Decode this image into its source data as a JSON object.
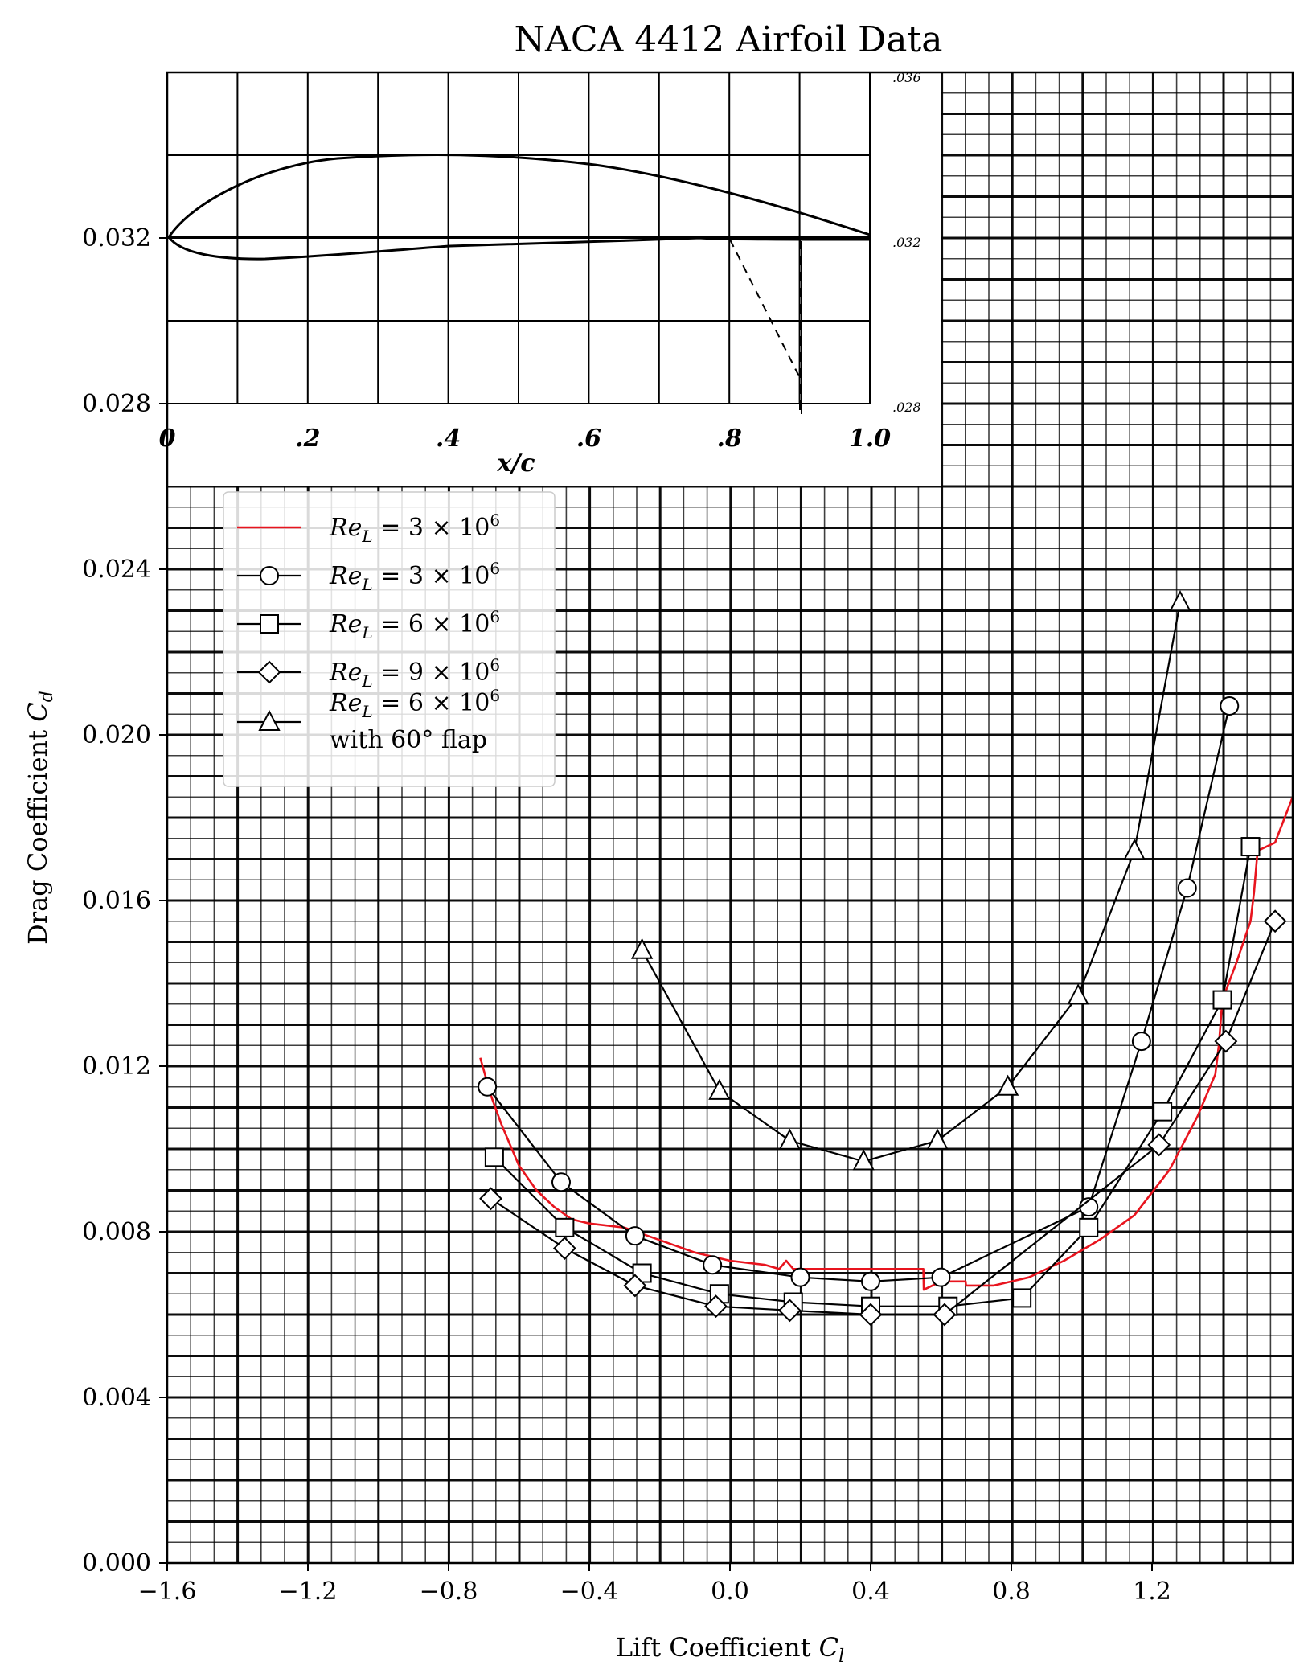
{
  "chart_data": {
    "type": "line",
    "title": "NACA 4412 Airfoil Data",
    "xlabel": "Lift Coefficient C_l",
    "ylabel": "Drag Coefficient C_d",
    "xlim": [
      -1.6,
      1.6
    ],
    "ylim": [
      0.0,
      0.036
    ],
    "x_ticks": [
      "−1.6",
      "−1.2",
      "−0.8",
      "−0.4",
      "0.0",
      "0.4",
      "0.8",
      "1.2"
    ],
    "x_tick_values": [
      -1.6,
      -1.2,
      -0.8,
      -0.4,
      0.0,
      0.4,
      0.8,
      1.2
    ],
    "y_ticks": [
      "0.000",
      "0.004",
      "0.008",
      "0.012",
      "0.016",
      "0.020",
      "0.024",
      "0.028",
      "0.032"
    ],
    "y_tick_values": [
      0.0,
      0.004,
      0.008,
      0.012,
      0.016,
      0.02,
      0.024,
      0.028,
      0.032
    ],
    "grid": true,
    "legend_position": "upper-left",
    "inset": {
      "x_ticks": [
        "0",
        ".2",
        ".4",
        ".6",
        ".8",
        "1.0"
      ],
      "x_label": "x/c",
      "right_ticks": [
        ".036",
        ".032",
        ".028"
      ]
    },
    "series": [
      {
        "name": "Re_L = 3 × 10^6",
        "legend_base": "Re",
        "legend_sub": "L",
        "legend_eq": " = 3 × 10",
        "legend_sup": "6",
        "legend_line2": "",
        "color": "#e8141e",
        "marker": "none",
        "x": [
          -0.71,
          -0.68,
          -0.65,
          -0.6,
          -0.55,
          -0.5,
          -0.45,
          -0.4,
          -0.3,
          -0.2,
          -0.1,
          0.0,
          0.1,
          0.14,
          0.16,
          0.18,
          0.22,
          0.3,
          0.4,
          0.5,
          0.55,
          0.551,
          0.6,
          0.67,
          0.671,
          0.75,
          0.85,
          0.95,
          1.05,
          1.15,
          1.25,
          1.33,
          1.38,
          1.39,
          1.4,
          1.44,
          1.48,
          1.49,
          1.5,
          1.55,
          1.6
        ],
        "y": [
          0.0122,
          0.0113,
          0.0106,
          0.0096,
          0.009,
          0.0086,
          0.0083,
          0.0082,
          0.0081,
          0.0078,
          0.0075,
          0.0073,
          0.0072,
          0.0071,
          0.0073,
          0.0071,
          0.0071,
          0.0071,
          0.0071,
          0.0071,
          0.0071,
          0.0066,
          0.0068,
          0.0068,
          0.0067,
          0.0067,
          0.0069,
          0.0073,
          0.0078,
          0.0084,
          0.0095,
          0.0108,
          0.0118,
          0.0125,
          0.0136,
          0.0145,
          0.0155,
          0.0162,
          0.0172,
          0.0174,
          0.0185
        ]
      },
      {
        "name": "Re_L = 3 × 10^6",
        "legend_base": "Re",
        "legend_sub": "L",
        "legend_eq": " = 3 × 10",
        "legend_sup": "6",
        "legend_line2": "",
        "color": "#000000",
        "marker": "circle",
        "x": [
          -0.69,
          -0.48,
          -0.27,
          -0.05,
          0.2,
          0.4,
          0.6,
          1.02,
          1.17,
          1.3,
          1.42
        ],
        "y": [
          0.0115,
          0.0092,
          0.0079,
          0.0072,
          0.0069,
          0.0068,
          0.0069,
          0.0086,
          0.0126,
          0.0163,
          0.0207
        ]
      },
      {
        "name": "Re_L = 6 × 10^6",
        "legend_base": "Re",
        "legend_sub": "L",
        "legend_eq": " = 6 × 10",
        "legend_sup": "6",
        "legend_line2": "",
        "color": "#000000",
        "marker": "square",
        "x": [
          -0.67,
          -0.47,
          -0.25,
          -0.03,
          0.18,
          0.4,
          0.62,
          0.83,
          1.02,
          1.23,
          1.4,
          1.48
        ],
        "y": [
          0.0098,
          0.0081,
          0.007,
          0.0065,
          0.0063,
          0.0062,
          0.0062,
          0.0064,
          0.0081,
          0.0109,
          0.0136,
          0.0173
        ]
      },
      {
        "name": "Re_L = 9 × 10^6",
        "legend_base": "Re",
        "legend_sub": "L",
        "legend_eq": " = 9 × 10",
        "legend_sup": "6",
        "legend_line2": "",
        "color": "#000000",
        "marker": "diamond",
        "x": [
          -0.68,
          -0.47,
          -0.27,
          -0.04,
          0.17,
          0.4,
          0.61,
          1.22,
          1.41,
          1.55
        ],
        "y": [
          0.0088,
          0.0076,
          0.0067,
          0.0062,
          0.0061,
          0.006,
          0.006,
          0.0101,
          0.0126,
          0.0155
        ]
      },
      {
        "name": "Re_L = 6 × 10^6 with 60° flap",
        "legend_base": "Re",
        "legend_sub": "L",
        "legend_eq": " = 6 × 10",
        "legend_sup": "6",
        "legend_line2": "with 60° flap",
        "color": "#000000",
        "marker": "triangle",
        "x": [
          -0.25,
          -0.03,
          0.17,
          0.38,
          0.59,
          0.79,
          0.99,
          1.15,
          1.28
        ],
        "y": [
          0.0148,
          0.0114,
          0.0102,
          0.0097,
          0.0102,
          0.0115,
          0.0137,
          0.0172,
          0.0232
        ]
      }
    ]
  }
}
